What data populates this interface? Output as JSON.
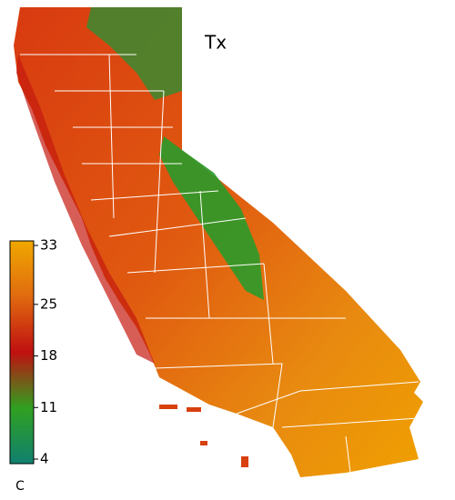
{
  "title": "Tx",
  "colorbar": {
    "ticks": [
      33,
      25,
      18,
      11,
      4
    ],
    "unit": "C"
  }
}
